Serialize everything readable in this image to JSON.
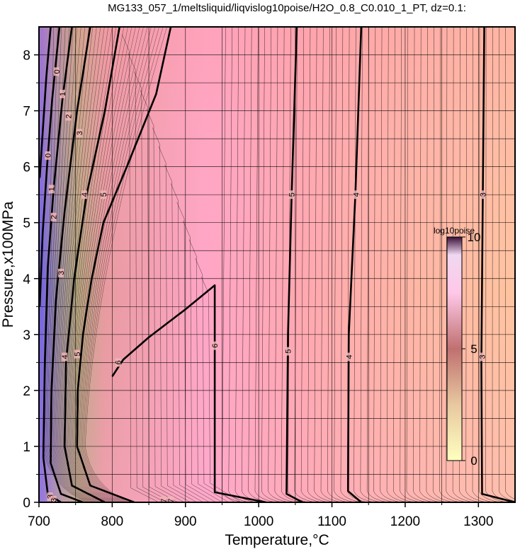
{
  "chart_data": {
    "type": "contour",
    "title": "MG133_057_1/meltsliquid/liqvislog10poise/H2O_0.8_C0.010_1_PT, dz=0.1:",
    "xlabel": "Temperature,°C",
    "ylabel": "Pressure,x100MPa",
    "xlim": [
      700,
      1350
    ],
    "ylim": [
      0,
      8.5
    ],
    "x_ticks": [
      "700",
      "800",
      "900",
      "1000",
      "1100",
      "1200",
      "1300"
    ],
    "y_ticks": [
      "0",
      "1",
      "2",
      "3",
      "4",
      "5",
      "6",
      "7",
      "8"
    ],
    "grid": true,
    "colorbar": {
      "title": "log10poise",
      "range": [
        0,
        10
      ],
      "tick_labels": [
        "0",
        "5",
        "10"
      ],
      "placement": "right-inside",
      "colors": [
        "#ffffcc",
        "#c98a7a",
        "#ffd6f0",
        "#2a0a2a"
      ]
    },
    "background_colors": {
      "low_T_high_viscosity": "#7a66ee",
      "mid": "#ff9fb0",
      "high_T": "#ffc8a0",
      "peak_region": "#ffb0d0"
    },
    "major_contours": [
      {
        "level": 3,
        "points": [
          [
            1308,
            8.5
          ],
          [
            1306,
            5.5
          ],
          [
            1304,
            2.5
          ],
          [
            1305,
            0.15
          ],
          [
            1350,
            0.0
          ]
        ]
      },
      {
        "level": 4,
        "points": [
          [
            1140,
            8.5
          ],
          [
            1132,
            5.5
          ],
          [
            1123,
            3.0
          ],
          [
            1122,
            0.2
          ],
          [
            1140,
            0.0
          ]
        ]
      },
      {
        "level": 5,
        "points": [
          [
            1052,
            8.5
          ],
          [
            1045,
            5.5
          ],
          [
            1040,
            3.0
          ],
          [
            1038,
            0.15
          ],
          [
            1060,
            0.0
          ]
        ]
      },
      {
        "level": 6,
        "points": [
          [
            800,
            2.25
          ],
          [
            815,
            2.55
          ],
          [
            850,
            2.95
          ],
          [
            900,
            3.45
          ],
          [
            940,
            3.88
          ],
          [
            940,
            2.8
          ],
          [
            940,
            0.18
          ],
          [
            1010,
            0.0
          ]
        ]
      },
      {
        "level": 5,
        "points": [
          [
            880,
            8.5
          ],
          [
            860,
            7.3
          ],
          [
            820,
            6.0
          ],
          [
            788,
            5.0
          ],
          [
            772,
            4.0
          ],
          [
            760,
            3.0
          ],
          [
            753,
            2.0
          ],
          [
            752,
            1.0
          ],
          [
            770,
            0.3
          ],
          [
            830,
            0.0
          ]
        ]
      },
      {
        "level": 4,
        "points": [
          [
            810,
            8.5
          ],
          [
            790,
            7.0
          ],
          [
            765,
            5.5
          ],
          [
            748,
            4.0
          ],
          [
            737,
            2.5
          ],
          [
            735,
            1.0
          ],
          [
            745,
            0.3
          ],
          [
            790,
            0.0
          ]
        ]
      },
      {
        "level": 3,
        "points": [
          [
            770,
            8.5
          ],
          [
            752,
            7.0
          ],
          [
            735,
            5.2
          ],
          [
            723,
            3.6
          ],
          [
            717,
            2.0
          ],
          [
            716,
            0.7
          ],
          [
            730,
            0.15
          ],
          [
            760,
            0.0
          ]
        ]
      },
      {
        "level": 2,
        "points": [
          [
            745,
            8.5
          ],
          [
            732,
            7.2
          ],
          [
            720,
            5.6
          ],
          [
            712,
            4.2
          ],
          [
            708,
            2.5
          ],
          [
            706,
            0.8
          ],
          [
            712,
            0.15
          ],
          [
            730,
            0.0
          ]
        ]
      },
      {
        "level": 1,
        "points": [
          [
            728,
            8.5
          ],
          [
            718,
            7.2
          ],
          [
            711,
            6.0
          ],
          [
            705,
            4.8
          ],
          [
            701,
            3.5
          ]
        ]
      },
      {
        "level": 0,
        "points": [
          [
            716,
            8.5
          ],
          [
            710,
            7.6
          ],
          [
            705,
            6.6
          ],
          [
            701,
            5.8
          ]
        ]
      }
    ],
    "contour_labels": [
      {
        "text": "3",
        "x": 1306,
        "y": 5.5
      },
      {
        "text": "3",
        "x": 1305,
        "y": 2.6
      },
      {
        "text": "4",
        "x": 1133,
        "y": 5.5
      },
      {
        "text": "4",
        "x": 1123,
        "y": 2.6
      },
      {
        "text": "5",
        "x": 1045,
        "y": 5.5
      },
      {
        "text": "5",
        "x": 1040,
        "y": 2.7
      },
      {
        "text": "6",
        "x": 940,
        "y": 2.8
      },
      {
        "text": "6",
        "x": 808,
        "y": 2.5
      },
      {
        "text": "5",
        "x": 788,
        "y": 5.5
      },
      {
        "text": "5",
        "x": 752,
        "y": 2.65
      },
      {
        "text": "4",
        "x": 762,
        "y": 5.5
      },
      {
        "text": "4",
        "x": 735,
        "y": 2.6
      },
      {
        "text": "3",
        "x": 755,
        "y": 6.6
      },
      {
        "text": "3",
        "x": 730,
        "y": 4.1
      },
      {
        "text": "2",
        "x": 740,
        "y": 6.9
      },
      {
        "text": "2",
        "x": 720,
        "y": 5.1
      },
      {
        "text": "1",
        "x": 732,
        "y": 7.3
      },
      {
        "text": "1",
        "x": 717,
        "y": 5.6
      },
      {
        "text": "0",
        "x": 724,
        "y": 7.7
      },
      {
        "text": "0",
        "x": 712,
        "y": 6.2
      },
      {
        "text": "3",
        "x": 715,
        "y": 0.1
      },
      {
        "text": "3",
        "x": 720,
        "y": 0.04
      },
      {
        "text": "7",
        "x": 870,
        "y": 0.03
      },
      {
        "text": "7",
        "x": 880,
        "y": 0.03
      }
    ]
  }
}
